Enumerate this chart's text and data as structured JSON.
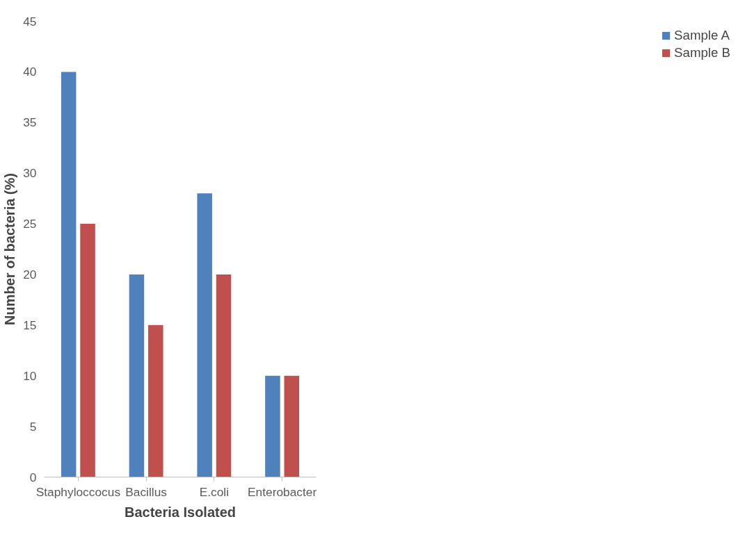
{
  "chart_data": {
    "type": "bar",
    "xlabel": "Bacteria Isolated",
    "ylabel": "Number of bacteria (%)",
    "categories": [
      "Staphyloccocus",
      "Bacillus",
      "E.coli",
      "Enterobacter"
    ],
    "series": [
      {
        "name": "Sample A",
        "color": "#4f81bd",
        "values": [
          40,
          20,
          28,
          10
        ]
      },
      {
        "name": "Sample B",
        "color": "#c0504d",
        "values": [
          25,
          15,
          20,
          10
        ]
      }
    ],
    "ylim": [
      0,
      45
    ],
    "yticks": [
      0,
      5,
      10,
      15,
      20,
      25,
      30,
      35,
      40,
      45
    ],
    "grid": false,
    "legend": "right"
  }
}
